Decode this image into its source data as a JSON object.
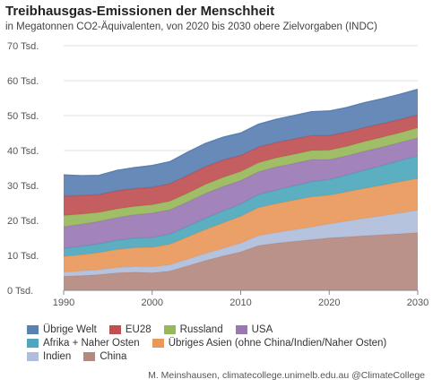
{
  "chart_data": {
    "type": "area",
    "stacked": true,
    "title": "Treibhausgas-Emissionen der Menschheit",
    "subtitle": "in Megatonnen CO2-Äquivalenten, von 2020 bis 2030 obere Zielvorgaben (INDC)",
    "xlim": [
      1990,
      2030
    ],
    "ylim": [
      0,
      70
    ],
    "x_ticks": [
      "1990",
      "2000",
      "2010",
      "2020",
      "2030"
    ],
    "y_ticks": [
      "0 Tsd.",
      "10 Tsd.",
      "20 Tsd.",
      "30 Tsd.",
      "40 Tsd.",
      "50 Tsd.",
      "60 Tsd.",
      "70 Tsd."
    ],
    "grid": true,
    "legend_position": "bottom",
    "x": [
      1990,
      1992,
      1994,
      1996,
      1998,
      2000,
      2002,
      2004,
      2006,
      2008,
      2010,
      2012,
      2014,
      2016,
      2018,
      2020,
      2022,
      2024,
      2026,
      2028,
      2030
    ],
    "series": [
      {
        "name": "China",
        "color": "#b5897f",
        "values": [
          4,
          4.2,
          4.5,
          5,
          5.2,
          5,
          5.5,
          7,
          8.5,
          9.8,
          11,
          12.8,
          13.5,
          14,
          14.5,
          15,
          15.3,
          15.6,
          15.9,
          16.2,
          16.5
        ]
      },
      {
        "name": "Indien",
        "color": "#b0bedc",
        "values": [
          1.2,
          1.3,
          1.4,
          1.5,
          1.6,
          1.7,
          1.8,
          1.9,
          2.0,
          2.2,
          2.5,
          2.8,
          3.0,
          3.3,
          3.6,
          4.0,
          4.5,
          5.0,
          5.4,
          5.9,
          6.4
        ]
      },
      {
        "name": "Übriges Asien (ohne China/Indien/Naher Osten)",
        "color": "#e8985a",
        "values": [
          4.5,
          4.7,
          4.9,
          5.2,
          5.4,
          5.6,
          5.9,
          6.4,
          6.9,
          7.3,
          7.7,
          8.1,
          8.3,
          8.5,
          8.7,
          8.2,
          8.4,
          8.6,
          8.8,
          9.0,
          9.1
        ]
      },
      {
        "name": "Afrika + Naher Osten",
        "color": "#4ea7bc",
        "values": [
          2.3,
          2.4,
          2.5,
          2.6,
          2.7,
          2.8,
          2.9,
          3.0,
          3.2,
          3.4,
          3.5,
          3.7,
          3.9,
          4.1,
          4.3,
          4.5,
          4.8,
          5.2,
          5.6,
          6.0,
          6.5
        ]
      },
      {
        "name": "USA",
        "color": "#9a78b4",
        "values": [
          6.2,
          6.3,
          6.4,
          6.5,
          6.7,
          7.0,
          6.9,
          7.0,
          7.1,
          7.0,
          6.7,
          6.5,
          6.6,
          6.4,
          6.3,
          5.7,
          5.5,
          5.4,
          5.3,
          5.2,
          5.1
        ]
      },
      {
        "name": "Russland",
        "color": "#97b85a",
        "values": [
          3.2,
          2.9,
          2.6,
          2.5,
          2.4,
          2.4,
          2.5,
          2.5,
          2.6,
          2.6,
          2.6,
          2.6,
          2.6,
          2.6,
          2.6,
          2.7,
          2.7,
          2.8,
          2.8,
          2.8,
          2.9
        ]
      },
      {
        "name": "EU28",
        "color": "#bf5052",
        "values": [
          5.6,
          5.3,
          5.1,
          5.2,
          5.1,
          5.0,
          5.0,
          5.1,
          5.1,
          5.0,
          4.6,
          4.5,
          4.4,
          4.4,
          4.3,
          4.2,
          4.1,
          4.0,
          3.9,
          3.8,
          3.7
        ]
      },
      {
        "name": "Übrige Welt",
        "color": "#5b80b2",
        "values": [
          6.0,
          5.7,
          5.5,
          5.8,
          6.0,
          6.2,
          6.3,
          6.6,
          6.6,
          6.5,
          6.4,
          6.5,
          6.6,
          6.7,
          6.8,
          7.0,
          7.0,
          7.1,
          7.1,
          7.2,
          7.3
        ]
      }
    ]
  },
  "legend": {
    "row1": [
      "Übrige Welt",
      "EU28",
      "Russland",
      "USA"
    ],
    "row2": [
      "Afrika + Naher Osten",
      "Übriges Asien (ohne China/Indien/Naher Osten)"
    ],
    "row3": [
      "Indien",
      "China"
    ]
  },
  "credit": "M. Meinshausen, climatecollege.unimelb.edu.au @ClimateCollege"
}
